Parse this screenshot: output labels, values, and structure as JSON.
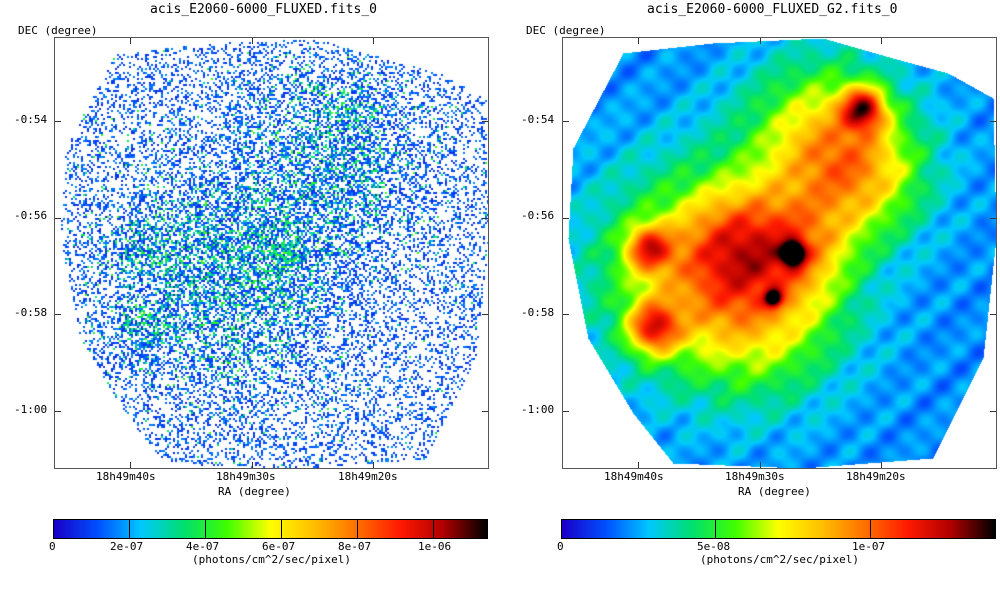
{
  "chart_data": [
    {
      "type": "heatmap",
      "title": "acis_E2060-6000_FLUXED.fits_0",
      "xlabel": "RA (degree)",
      "ylabel": "DEC (degree)",
      "x_ticks": [
        "18h49m40s",
        "18h49m30s",
        "18h49m20s"
      ],
      "y_ticks": [
        "-0:54",
        "-0:56",
        "-0:58",
        "-1:00"
      ],
      "colorbar": {
        "label": "(photons/cm^2/sec/pixel)",
        "ticks": [
          "0",
          "2e-07",
          "4e-07",
          "6e-07",
          "8e-07",
          "1e-06"
        ],
        "range": [
          0,
          1.15e-06
        ]
      },
      "style": "sparse pixel scatter"
    },
    {
      "type": "heatmap",
      "title": "acis_E2060-6000_FLUXED_G2.fits_0",
      "xlabel": "RA (degree)",
      "ylabel": "DEC (degree)",
      "x_ticks": [
        "18h49m40s",
        "18h49m30s",
        "18h49m20s"
      ],
      "y_ticks": [
        "-0:54",
        "-0:56",
        "-0:58",
        "-1:00"
      ],
      "colorbar": {
        "label": "(photons/cm^2/sec/pixel)",
        "ticks": [
          "0",
          "5e-08",
          "1e-07"
        ],
        "range": [
          0,
          1.4e-07
        ]
      },
      "style": "gaussian smoothed"
    }
  ],
  "colormap": [
    "#1a00c8",
    "#0050ff",
    "#00c8ff",
    "#00e070",
    "#40ff00",
    "#ffff00",
    "#ffc000",
    "#ff7000",
    "#ff1a00",
    "#b00000",
    "#000000"
  ]
}
